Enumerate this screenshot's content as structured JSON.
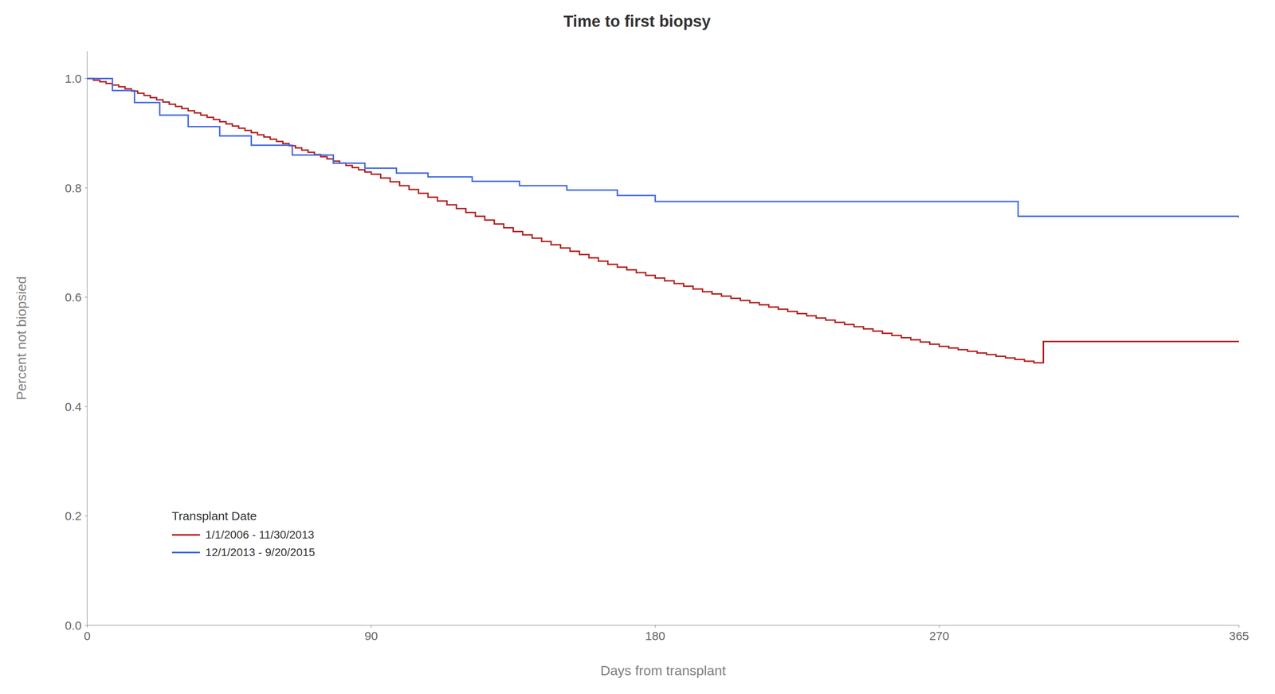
{
  "chart_data": {
    "type": "step",
    "title": "Time to first biopsy",
    "xlabel": "Days from transplant",
    "ylabel": "Percent not biopsied",
    "xlim": [
      0,
      365
    ],
    "ylim": [
      0.0,
      1.05
    ],
    "xticks": [
      0,
      90,
      180,
      270,
      365
    ],
    "yticks": [
      {
        "value": 0,
        "label": "0.0"
      },
      0.2,
      0.4,
      0.6,
      0.8,
      {
        "value": 1,
        "label": "1.0"
      }
    ],
    "grid": false,
    "legend": "lower left",
    "legend_title": "Transplant Date",
    "series": [
      {
        "name": "1/1/2006 - 11/30/2013",
        "color": "#B22222",
        "x": [
          0,
          2,
          4,
          6,
          8,
          10,
          12,
          14,
          16,
          18,
          20,
          22,
          24,
          26,
          28,
          30,
          32,
          34,
          36,
          38,
          40,
          42,
          44,
          46,
          48,
          50,
          52,
          54,
          56,
          58,
          60,
          62,
          64,
          66,
          68,
          70,
          72,
          74,
          76,
          78,
          80,
          82,
          84,
          86,
          88,
          90,
          93,
          96,
          99,
          102,
          105,
          108,
          111,
          114,
          117,
          120,
          123,
          126,
          129,
          132,
          135,
          138,
          141,
          144,
          147,
          150,
          153,
          156,
          159,
          162,
          165,
          168,
          171,
          174,
          177,
          180,
          183,
          186,
          189,
          192,
          195,
          198,
          201,
          204,
          207,
          210,
          213,
          216,
          219,
          222,
          225,
          228,
          231,
          234,
          237,
          240,
          243,
          246,
          249,
          252,
          255,
          258,
          261,
          264,
          267,
          270,
          273,
          276,
          279,
          282,
          285,
          288,
          291,
          294,
          297,
          300,
          303,
          306,
          309,
          312,
          315,
          318,
          321,
          324,
          327,
          330,
          333,
          336,
          339,
          342,
          345,
          348,
          351,
          354,
          357,
          360,
          363,
          365
        ],
        "values": [
          1.0,
          0.997,
          0.994,
          0.991,
          0.988,
          0.985,
          0.981,
          0.977,
          0.973,
          0.969,
          0.965,
          0.961,
          0.957,
          0.953,
          0.949,
          0.945,
          0.941,
          0.937,
          0.933,
          0.929,
          0.925,
          0.921,
          0.917,
          0.913,
          0.909,
          0.905,
          0.901,
          0.897,
          0.893,
          0.889,
          0.885,
          0.881,
          0.877,
          0.873,
          0.869,
          0.865,
          0.861,
          0.857,
          0.853,
          0.849,
          0.845,
          0.841,
          0.837,
          0.833,
          0.829,
          0.825,
          0.818,
          0.811,
          0.804,
          0.797,
          0.79,
          0.783,
          0.776,
          0.769,
          0.762,
          0.755,
          0.748,
          0.741,
          0.734,
          0.727,
          0.72,
          0.714,
          0.708,
          0.702,
          0.696,
          0.69,
          0.684,
          0.678,
          0.672,
          0.666,
          0.66,
          0.655,
          0.65,
          0.645,
          0.64,
          0.635,
          0.63,
          0.625,
          0.62,
          0.615,
          0.61,
          0.606,
          0.602,
          0.598,
          0.594,
          0.59,
          0.586,
          0.582,
          0.578,
          0.574,
          0.57,
          0.566,
          0.562,
          0.558,
          0.554,
          0.55,
          0.546,
          0.542,
          0.538,
          0.534,
          0.53,
          0.526,
          0.522,
          0.518,
          0.514,
          0.51,
          0.507,
          0.504,
          0.501,
          0.498,
          0.495,
          0.492,
          0.489,
          0.486,
          0.483,
          0.48,
          0.519,
          0.519,
          0.519,
          0.519,
          0.519,
          0.519,
          0.519,
          0.519,
          0.519,
          0.519,
          0.519,
          0.519,
          0.519,
          0.519,
          0.519,
          0.519,
          0.519,
          0.519,
          0.519,
          0.519,
          0.519,
          0.519
        ]
      },
      {
        "name": "12/1/2013 - 9/20/2015",
        "color": "#4169E1",
        "x": [
          0,
          8,
          15,
          23,
          32,
          42,
          52,
          65,
          78,
          88,
          98,
          108,
          122,
          137,
          152,
          168,
          180,
          270,
          295,
          365
        ],
        "values": [
          1.0,
          0.978,
          0.956,
          0.933,
          0.912,
          0.895,
          0.878,
          0.86,
          0.845,
          0.836,
          0.827,
          0.82,
          0.812,
          0.804,
          0.796,
          0.786,
          0.775,
          0.775,
          0.748,
          0.745
        ]
      }
    ]
  }
}
